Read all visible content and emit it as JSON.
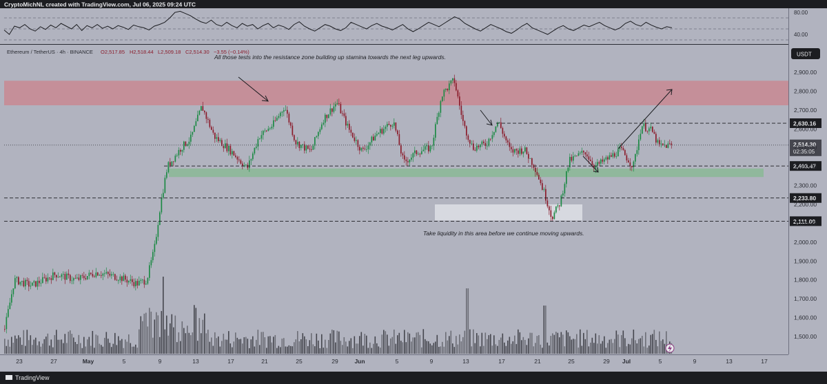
{
  "header": {
    "credit": "CryptoMichNL created with TradingView.com, Jul 06, 2025 09:24 UTC"
  },
  "footer": {
    "brand": "TradingView"
  },
  "symbol_bar": {
    "name": "Ethereum / TetherUS · 4h · BINANCE",
    "open": "O2,517.85",
    "high": "H2,518.44",
    "low": "L2,509.18",
    "close": "C2,514.30",
    "change": "−3.55 (−0.14%)"
  },
  "currency_badge": "USDT",
  "colors": {
    "background": "#b1b3bf",
    "up": "#1d8a45",
    "down": "#8b1d2c",
    "resistance_zone": "#c98892",
    "support_zone": "#8bb895",
    "liquidity_zone": "#dcdde3",
    "dark": "#1c1d21"
  },
  "annotations": {
    "top": "All those tests into the resistance zone building up stamina towards the next leg upwards.",
    "bottom": "Take liquidity in this area before we continue moving upwards."
  },
  "chart_data": [
    {
      "type": "line",
      "title": "",
      "ylim": [
        25,
        85
      ],
      "y_ticks": [
        "80.00",
        "40.00"
      ],
      "levels": [
        70,
        50,
        30
      ],
      "series": [
        {
          "values": [
            48,
            40,
            55,
            52,
            58,
            50,
            46,
            54,
            49,
            57,
            52,
            60,
            55,
            50,
            58,
            47,
            56,
            52,
            58,
            51,
            55,
            50,
            56,
            53,
            49,
            57,
            54,
            52,
            48,
            55,
            58,
            62,
            70,
            80,
            82,
            78,
            74,
            68,
            63,
            60,
            66,
            58,
            55,
            62,
            56,
            52,
            60,
            55,
            58,
            50,
            56,
            60,
            52,
            57,
            54,
            49,
            58,
            63,
            55,
            50,
            46,
            52,
            58,
            55,
            50,
            47,
            52,
            62,
            58,
            54,
            50,
            56,
            60,
            55,
            52,
            48,
            53,
            58,
            50,
            45,
            50,
            56,
            62,
            58,
            54,
            60,
            66,
            72,
            68,
            60,
            55,
            50,
            46,
            52,
            58,
            54,
            50,
            45,
            42,
            48,
            55,
            60,
            52,
            48,
            44,
            40,
            46,
            52,
            56,
            50,
            47,
            52,
            57,
            54,
            58,
            62,
            56,
            52,
            48,
            52,
            60,
            64,
            58,
            55,
            62,
            57,
            53,
            50,
            54,
            52
          ]
        }
      ]
    },
    {
      "type": "candlestick",
      "title": "",
      "ylim": [
        1420,
        2960
      ],
      "y_ticks": [
        "1,500.00",
        "1,600.00",
        "1,700.00",
        "1,800.00",
        "1,900.00",
        "2,000.00",
        "2,100.00",
        "2,200.00",
        "2,300.00",
        "2,400.00",
        "2,500.00",
        "2,600.00",
        "2,700.00",
        "2,800.00",
        "2,900.00"
      ],
      "x_ticks": [
        "23",
        "27",
        "May",
        "5",
        "9",
        "13",
        "17",
        "21",
        "25",
        "29",
        "Jun",
        "5",
        "9",
        "13",
        "17",
        "21",
        "25",
        "29",
        "Jul",
        "5",
        "9",
        "13",
        "17"
      ],
      "keypoints": [
        {
          "x": 0,
          "y": 1640
        },
        {
          "x": 6,
          "y": 1540
        },
        {
          "x": 20,
          "y": 1800
        },
        {
          "x": 45,
          "y": 1770
        },
        {
          "x": 80,
          "y": 1830
        },
        {
          "x": 110,
          "y": 1800
        },
        {
          "x": 140,
          "y": 1840
        },
        {
          "x": 175,
          "y": 1810
        },
        {
          "x": 198,
          "y": 1780
        },
        {
          "x": 212,
          "y": 1800
        },
        {
          "x": 223,
          "y": 1960
        },
        {
          "x": 232,
          "y": 2200
        },
        {
          "x": 242,
          "y": 2400
        },
        {
          "x": 252,
          "y": 2450
        },
        {
          "x": 262,
          "y": 2500
        },
        {
          "x": 276,
          "y": 2550
        },
        {
          "x": 292,
          "y": 2720
        },
        {
          "x": 310,
          "y": 2560
        },
        {
          "x": 335,
          "y": 2480
        },
        {
          "x": 358,
          "y": 2390
        },
        {
          "x": 375,
          "y": 2560
        },
        {
          "x": 395,
          "y": 2620
        },
        {
          "x": 412,
          "y": 2720
        },
        {
          "x": 428,
          "y": 2530
        },
        {
          "x": 450,
          "y": 2480
        },
        {
          "x": 468,
          "y": 2650
        },
        {
          "x": 488,
          "y": 2740
        },
        {
          "x": 505,
          "y": 2600
        },
        {
          "x": 525,
          "y": 2480
        },
        {
          "x": 545,
          "y": 2570
        },
        {
          "x": 570,
          "y": 2640
        },
        {
          "x": 585,
          "y": 2420
        },
        {
          "x": 605,
          "y": 2480
        },
        {
          "x": 625,
          "y": 2500
        },
        {
          "x": 640,
          "y": 2780
        },
        {
          "x": 658,
          "y": 2860
        },
        {
          "x": 672,
          "y": 2620
        },
        {
          "x": 685,
          "y": 2500
        },
        {
          "x": 705,
          "y": 2520
        },
        {
          "x": 722,
          "y": 2640
        },
        {
          "x": 740,
          "y": 2480
        },
        {
          "x": 760,
          "y": 2490
        },
        {
          "x": 775,
          "y": 2400
        },
        {
          "x": 790,
          "y": 2250
        },
        {
          "x": 800,
          "y": 2130
        },
        {
          "x": 812,
          "y": 2210
        },
        {
          "x": 825,
          "y": 2430
        },
        {
          "x": 848,
          "y": 2480
        },
        {
          "x": 862,
          "y": 2400
        },
        {
          "x": 880,
          "y": 2440
        },
        {
          "x": 900,
          "y": 2490
        },
        {
          "x": 918,
          "y": 2400
        },
        {
          "x": 930,
          "y": 2620
        },
        {
          "x": 945,
          "y": 2590
        },
        {
          "x": 955,
          "y": 2510
        },
        {
          "x": 975,
          "y": 2514
        }
      ],
      "last_price": "2,514.30",
      "countdown": "02:35:05",
      "levels": [
        {
          "value": 2630.16,
          "label": "2,630.16",
          "style": "dashed"
        },
        {
          "value": 2403.47,
          "label": "2,403.47",
          "style": "dashed"
        },
        {
          "value": 2233.8,
          "label": "2,233.80",
          "style": "dashed"
        },
        {
          "value": 2111.0,
          "label": "2,111.00",
          "style": "dashed"
        }
      ],
      "zones": [
        {
          "name": "resistance",
          "from": 2725,
          "to": 2855
        },
        {
          "name": "support",
          "from": 2345,
          "to": 2390
        },
        {
          "name": "liquidity",
          "from": 2115,
          "to": 2200
        }
      ]
    }
  ]
}
